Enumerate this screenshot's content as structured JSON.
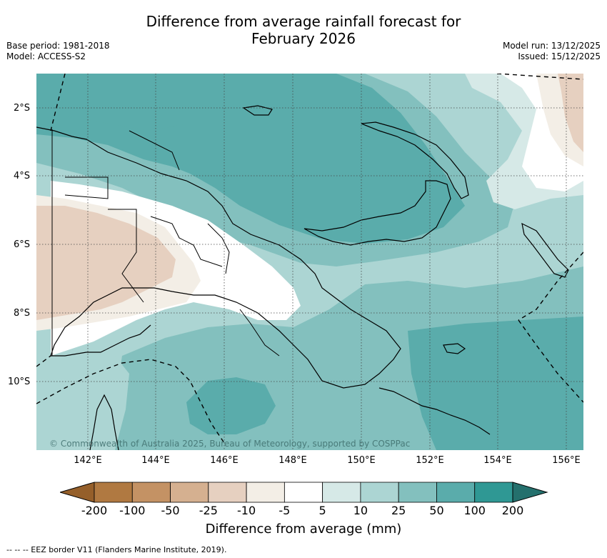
{
  "title_line1": "Difference from average rainfall forecast for",
  "title_line2": "February 2026",
  "meta": {
    "base_period": "Base period: 1981-2018",
    "model": "Model: ACCESS-S2",
    "model_run": "Model run: 13/12/2025",
    "issued": "Issued: 15/12/2025"
  },
  "map": {
    "lat_labels": [
      "2°S",
      "4°S",
      "6°S",
      "8°S",
      "10°S"
    ],
    "lon_labels": [
      "142°E",
      "144°E",
      "146°E",
      "148°E",
      "150°E",
      "152°E",
      "154°E",
      "156°E"
    ],
    "copyright": "© Commonwealth of Australia 2025, Bureau of Meteorology, supported by COSPPac"
  },
  "colorbar": {
    "title": "Difference from average (mm)",
    "tick_labels": [
      "-200",
      "-100",
      "-50",
      "-25",
      "-10",
      "-5",
      "5",
      "10",
      "25",
      "50",
      "100",
      "200"
    ],
    "colors": [
      "#955f2a",
      "#b07941",
      "#c49264",
      "#d5b090",
      "#e6d0c0",
      "#f3eee6",
      "#ffffff",
      "#d6e9e7",
      "#acd5d3",
      "#83c0be",
      "#5aacab",
      "#2f9894",
      "#24706d"
    ]
  },
  "footer": "--  --  -- EEZ border V11 (Flanders Marine Institute, 2019)."
}
